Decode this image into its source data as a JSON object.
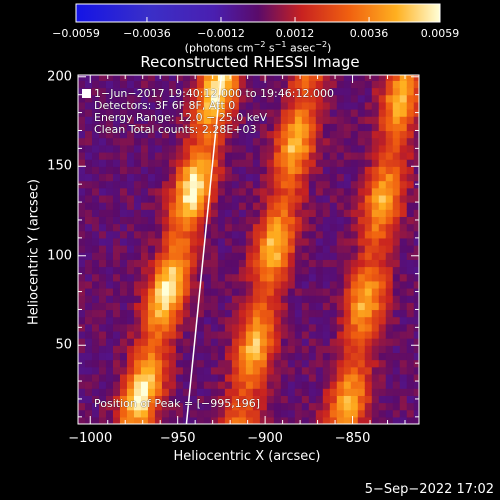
{
  "chart_data": {
    "type": "heatmap",
    "title": "Reconstructed RHESSI Image",
    "xlabel": "Heliocentric X (arcsec)",
    "ylabel": "Heliocentric Y (arcsec)",
    "xlim": [
      -1007,
      -812
    ],
    "ylim": [
      6,
      201
    ],
    "x_ticks": [
      -1000,
      -950,
      -900,
      -850
    ],
    "y_ticks": [
      50,
      100,
      150,
      200
    ],
    "x_tick_labels": [
      "−1000",
      "−950",
      "−900",
      "−850"
    ],
    "y_tick_labels": [
      "50",
      "100",
      "150",
      "200"
    ],
    "colorbar": {
      "min": -0.0059,
      "max": 0.0059,
      "ticks": [
        -0.0059,
        -0.0036,
        -0.0012,
        0.0012,
        0.0036,
        0.0059
      ],
      "tick_labels": [
        "−0.0059",
        "−0.0036",
        "−0.0012",
        "0.0012",
        "0.0036",
        "0.0059"
      ],
      "unit_main": "(photons cm",
      "unit_sup1": "−2",
      "unit_mid1": " s",
      "unit_sup2": "−1",
      "unit_mid2": " asec",
      "unit_sup3": "−2",
      "unit_end": ")"
    },
    "annotations": {
      "line1": "1−Jun−2017 19:40:12.000 to 19:46:12.000",
      "line2": "Detectors: 3F 6F 8F, Att 0",
      "line3": "Energy Range: 12.0 − 25.0 keV",
      "line4": "Clean     Total counts: 2.28E+03",
      "peak": "Position of Peak = [−995,196]"
    },
    "limb_line": [
      [
        -945,
        6
      ],
      [
        -925,
        201
      ]
    ],
    "bands": [
      {
        "name": "band-1",
        "x_at_bottom": -975,
        "x_at_top": -925,
        "peak_value": 0.0059
      },
      {
        "name": "band-2",
        "x_at_bottom": -915,
        "x_at_top": -875,
        "peak_value": 0.0048
      },
      {
        "name": "band-3",
        "x_at_bottom": -855,
        "x_at_top": -820,
        "peak_value": 0.0045
      }
    ]
  },
  "footer": {
    "date": "5−Sep−2022 17:02"
  }
}
